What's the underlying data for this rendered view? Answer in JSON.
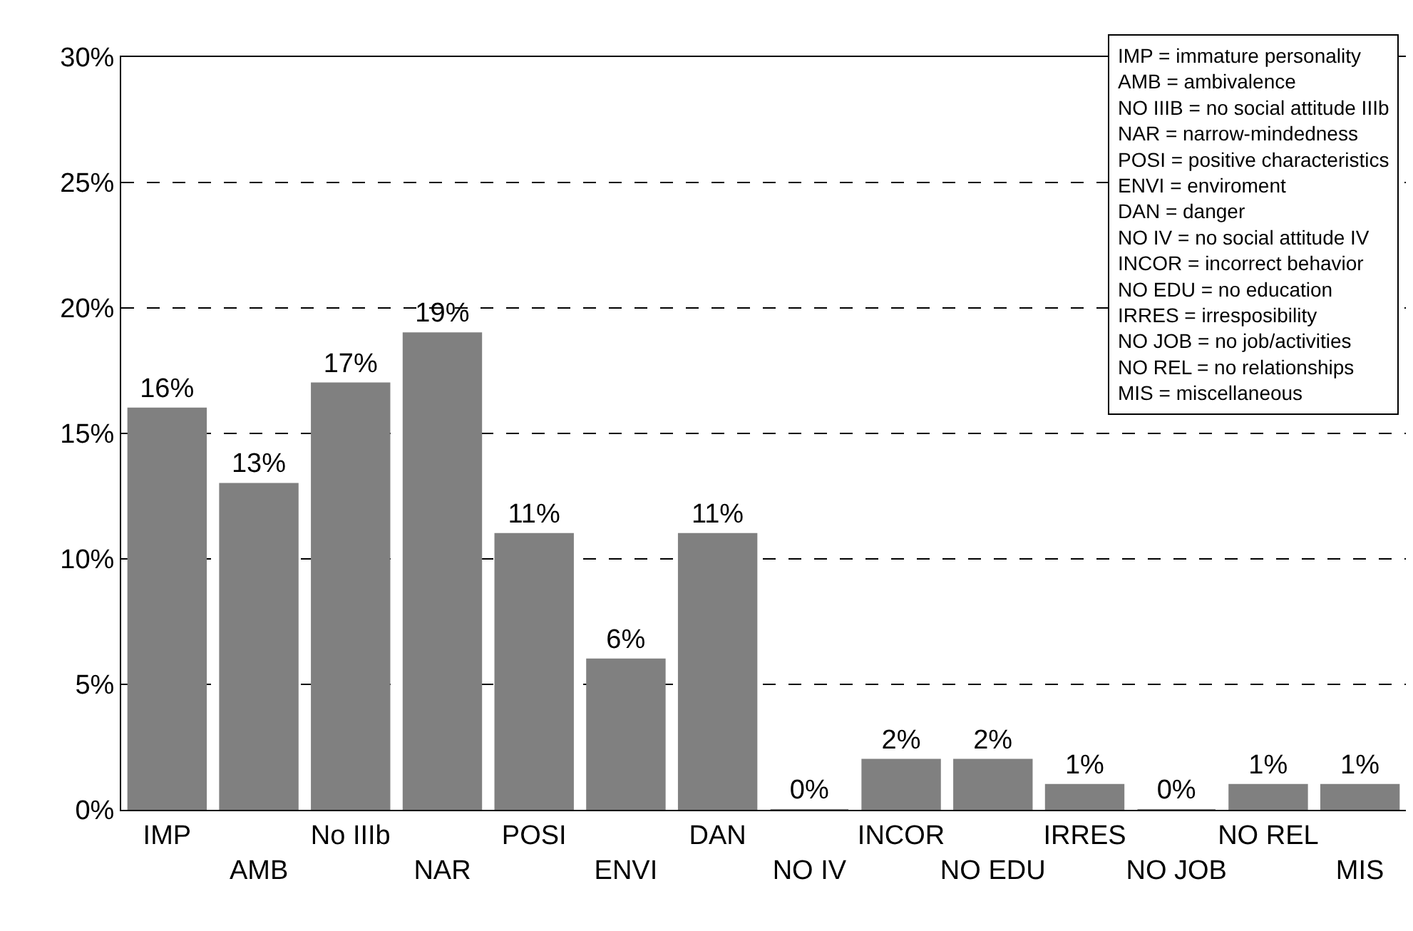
{
  "chart_data": {
    "type": "bar",
    "categories": [
      "IMP",
      "AMB",
      "No IIIb",
      "NAR",
      "POSI",
      "ENVI",
      "DAN",
      "NO IV",
      "INCOR",
      "NO EDU",
      "IRRES",
      "NO JOB",
      "NO REL",
      "MIS"
    ],
    "values": [
      16,
      13,
      17,
      19,
      11,
      6,
      11,
      0,
      2,
      2,
      1,
      0,
      1,
      1
    ],
    "value_labels": [
      "16%",
      "13%",
      "17%",
      "19%",
      "11%",
      "6%",
      "11%",
      "0%",
      "2%",
      "2%",
      "1%",
      "0%",
      "1%",
      "1%"
    ],
    "color": "#808080",
    "ylim": [
      0,
      30
    ],
    "yticks": [
      {
        "value": 0,
        "label": "0%"
      },
      {
        "value": 5,
        "label": "5%"
      },
      {
        "value": 10,
        "label": "10%"
      },
      {
        "value": 15,
        "label": "15%"
      },
      {
        "value": 20,
        "label": "20%"
      },
      {
        "value": 25,
        "label": "25%"
      },
      {
        "value": 30,
        "label": "30%"
      }
    ],
    "grid": "y",
    "line_style": "dashed",
    "annotations": [
      "IMP = immature personality",
      "AMB = ambivalence",
      "NO IIIB = no social attitude IIIb",
      "NAR = narrow-mindedness",
      "POSI = positive characteristics",
      "ENVI = enviroment",
      "DAN = danger",
      "NO IV = no social attitude IV",
      "INCOR = incorrect behavior",
      "NO EDU = no education",
      "IRRES = irresposibility",
      "NO JOB = no job/activities",
      "NO REL = no relationships",
      "MIS = miscellaneous"
    ]
  }
}
